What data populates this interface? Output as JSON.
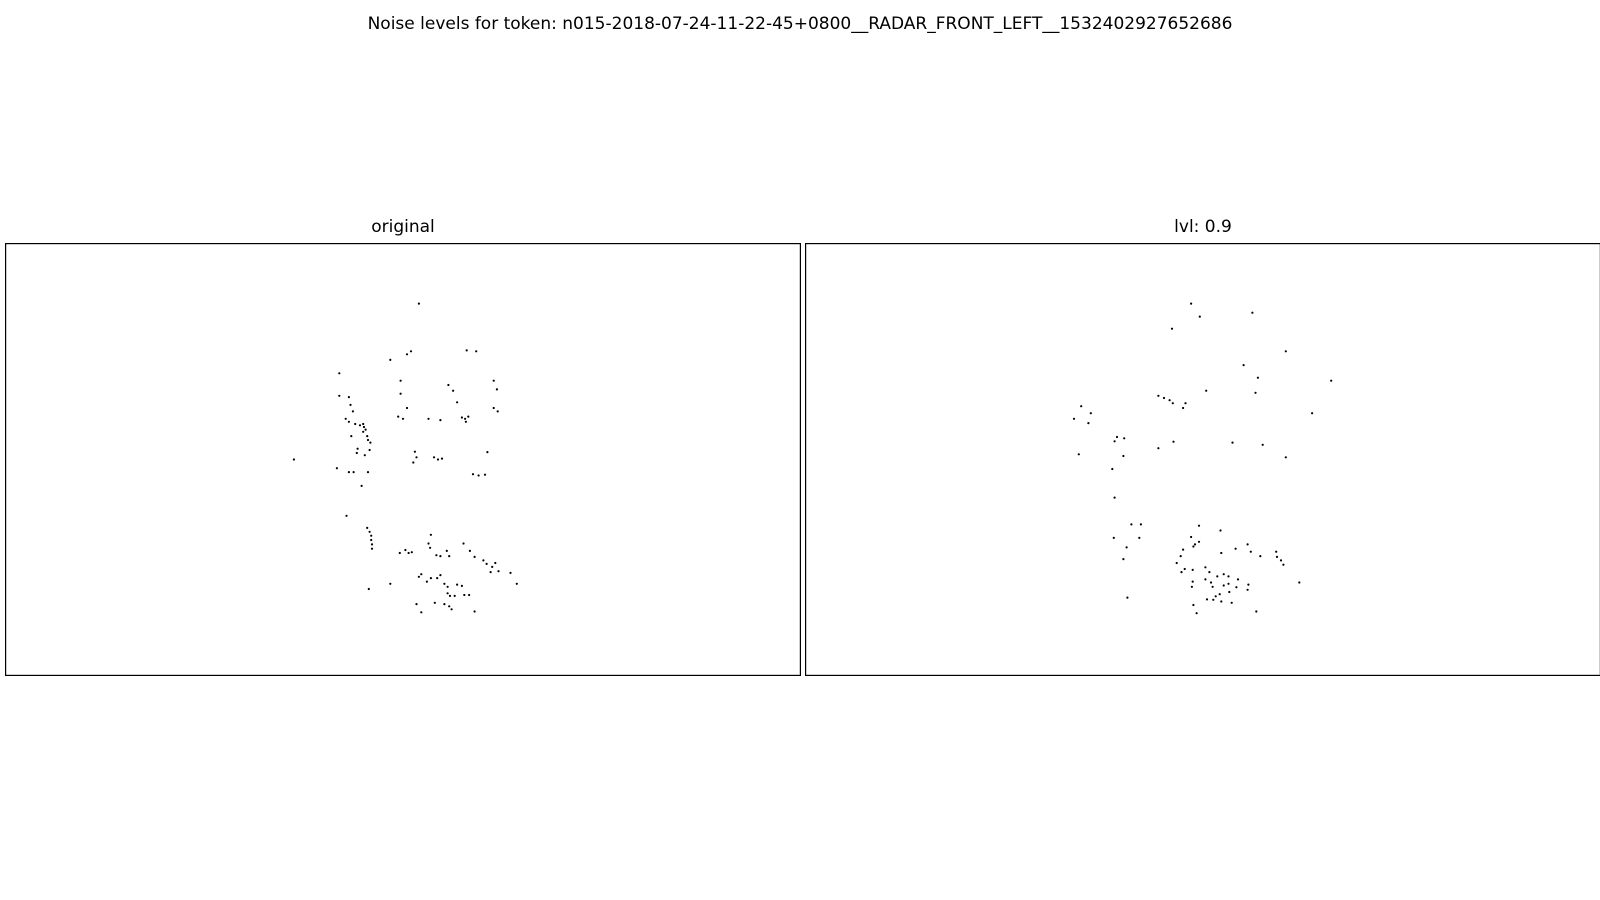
{
  "title": "Noise levels for token: n015-2018-07-24-11-22-45+0800__RADAR_FRONT_LEFT__1532402927652686",
  "chart_data": [
    {
      "type": "scatter",
      "title": "original",
      "axes_visible": false,
      "xlim": [
        0,
        100
      ],
      "ylim": [
        0,
        100
      ],
      "marker_color": "#000000",
      "points": [
        [
          52.0,
          86.0
        ],
        [
          51.0,
          75.0
        ],
        [
          50.5,
          74.3
        ],
        [
          58.0,
          75.2
        ],
        [
          59.2,
          75.0
        ],
        [
          48.4,
          73.0
        ],
        [
          42.0,
          69.9
        ],
        [
          49.7,
          68.2
        ],
        [
          61.4,
          68.2
        ],
        [
          55.7,
          67.2
        ],
        [
          49.7,
          65.2
        ],
        [
          61.8,
          66.2
        ],
        [
          56.3,
          65.9
        ],
        [
          42.0,
          64.7
        ],
        [
          43.2,
          64.4
        ],
        [
          50.5,
          61.9
        ],
        [
          56.8,
          63.2
        ],
        [
          61.4,
          61.9
        ],
        [
          61.9,
          61.1
        ],
        [
          43.4,
          62.6
        ],
        [
          43.7,
          61.1
        ],
        [
          49.4,
          59.9
        ],
        [
          50.0,
          59.4
        ],
        [
          53.2,
          59.4
        ],
        [
          54.7,
          59.1
        ],
        [
          57.4,
          59.7
        ],
        [
          57.9,
          58.7
        ],
        [
          58.2,
          59.9
        ],
        [
          57.8,
          59.4
        ],
        [
          42.8,
          59.4
        ],
        [
          43.2,
          58.7
        ],
        [
          44.0,
          58.2
        ],
        [
          44.6,
          57.9
        ],
        [
          45.0,
          58.2
        ],
        [
          45.1,
          57.5
        ],
        [
          45.3,
          56.9
        ],
        [
          45.0,
          56.4
        ],
        [
          43.5,
          55.4
        ],
        [
          45.5,
          55.4
        ],
        [
          45.6,
          54.5
        ],
        [
          45.9,
          53.9
        ],
        [
          44.2,
          51.5
        ],
        [
          45.2,
          51.0
        ],
        [
          45.8,
          52.2
        ],
        [
          44.3,
          52.5
        ],
        [
          51.5,
          51.8
        ],
        [
          51.7,
          50.5
        ],
        [
          51.3,
          49.3
        ],
        [
          53.9,
          50.5
        ],
        [
          54.4,
          50.0
        ],
        [
          54.9,
          50.2
        ],
        [
          36.3,
          50.0
        ],
        [
          41.7,
          48.0
        ],
        [
          43.2,
          47.1
        ],
        [
          43.8,
          47.1
        ],
        [
          45.6,
          47.1
        ],
        [
          58.8,
          46.6
        ],
        [
          59.5,
          46.3
        ],
        [
          60.3,
          46.5
        ],
        [
          60.6,
          51.7
        ],
        [
          44.8,
          43.9
        ],
        [
          42.9,
          37.0
        ],
        [
          45.5,
          34.2
        ],
        [
          45.8,
          33.3
        ],
        [
          46.0,
          32.4
        ],
        [
          46.0,
          31.4
        ],
        [
          46.1,
          30.4
        ],
        [
          46.1,
          29.4
        ],
        [
          53.5,
          32.6
        ],
        [
          53.2,
          30.6
        ],
        [
          53.4,
          29.6
        ],
        [
          57.6,
          30.6
        ],
        [
          58.4,
          28.9
        ],
        [
          49.6,
          28.4
        ],
        [
          50.3,
          29.1
        ],
        [
          50.7,
          28.4
        ],
        [
          51.1,
          28.6
        ],
        [
          54.2,
          27.9
        ],
        [
          54.7,
          27.7
        ],
        [
          55.5,
          28.9
        ],
        [
          55.8,
          27.7
        ],
        [
          59.0,
          27.5
        ],
        [
          60.1,
          26.7
        ],
        [
          60.5,
          25.9
        ],
        [
          61.6,
          26.1
        ],
        [
          61.2,
          25.2
        ],
        [
          61.0,
          24.0
        ],
        [
          62.0,
          24.2
        ],
        [
          63.5,
          23.8
        ],
        [
          64.3,
          21.3
        ],
        [
          52.3,
          23.5
        ],
        [
          52.0,
          22.9
        ],
        [
          53.5,
          22.6
        ],
        [
          54.3,
          22.6
        ],
        [
          54.7,
          23.3
        ],
        [
          53.0,
          21.8
        ],
        [
          55.2,
          21.3
        ],
        [
          55.6,
          20.6
        ],
        [
          56.8,
          21.1
        ],
        [
          57.4,
          20.8
        ],
        [
          55.6,
          19.1
        ],
        [
          55.9,
          18.5
        ],
        [
          56.5,
          18.5
        ],
        [
          57.7,
          18.7
        ],
        [
          58.3,
          18.7
        ],
        [
          48.4,
          21.3
        ],
        [
          45.7,
          20.1
        ],
        [
          51.7,
          16.6
        ],
        [
          52.3,
          14.7
        ],
        [
          54.0,
          16.9
        ],
        [
          55.2,
          16.6
        ],
        [
          55.8,
          16.1
        ],
        [
          56.1,
          15.4
        ],
        [
          59.0,
          14.9
        ]
      ]
    },
    {
      "type": "scatter",
      "title": "lvl: 0.9",
      "axes_visible": false,
      "xlim": [
        0,
        100
      ],
      "ylim": [
        0,
        100
      ],
      "marker_color": "#000000",
      "points": [
        [
          48.5,
          86.0
        ],
        [
          49.6,
          83.0
        ],
        [
          56.2,
          83.9
        ],
        [
          46.1,
          80.2
        ],
        [
          60.4,
          75.0
        ],
        [
          55.1,
          71.8
        ],
        [
          56.9,
          68.9
        ],
        [
          66.1,
          68.2
        ],
        [
          50.4,
          65.9
        ],
        [
          56.6,
          65.4
        ],
        [
          44.4,
          64.7
        ],
        [
          45.1,
          64.2
        ],
        [
          45.8,
          63.7
        ],
        [
          46.2,
          63.0
        ],
        [
          47.8,
          63.0
        ],
        [
          47.5,
          61.9
        ],
        [
          34.7,
          62.3
        ],
        [
          35.9,
          60.7
        ],
        [
          33.8,
          59.4
        ],
        [
          35.6,
          58.4
        ],
        [
          63.7,
          60.7
        ],
        [
          39.2,
          55.2
        ],
        [
          40.1,
          54.9
        ],
        [
          38.9,
          54.2
        ],
        [
          44.4,
          52.6
        ],
        [
          46.3,
          54.1
        ],
        [
          53.7,
          53.9
        ],
        [
          57.5,
          53.4
        ],
        [
          60.4,
          50.5
        ],
        [
          40.0,
          50.8
        ],
        [
          34.4,
          51.2
        ],
        [
          38.6,
          47.8
        ],
        [
          38.9,
          41.2
        ],
        [
          41.0,
          35.0
        ],
        [
          42.2,
          35.0
        ],
        [
          38.8,
          31.9
        ],
        [
          42.0,
          31.9
        ],
        [
          40.4,
          29.7
        ],
        [
          40.0,
          27.0
        ],
        [
          49.5,
          34.7
        ],
        [
          48.5,
          32.1
        ],
        [
          49.5,
          31.0
        ],
        [
          49.0,
          30.4
        ],
        [
          52.2,
          33.6
        ],
        [
          48.8,
          29.9
        ],
        [
          47.5,
          29.2
        ],
        [
          47.2,
          27.7
        ],
        [
          52.3,
          28.4
        ],
        [
          54.1,
          29.4
        ],
        [
          55.6,
          30.4
        ],
        [
          56.0,
          28.7
        ],
        [
          57.2,
          27.7
        ],
        [
          59.2,
          28.7
        ],
        [
          59.3,
          27.5
        ],
        [
          59.8,
          26.7
        ],
        [
          60.1,
          25.7
        ],
        [
          46.7,
          26.1
        ],
        [
          48.7,
          24.5
        ],
        [
          47.7,
          24.7
        ],
        [
          47.3,
          24.0
        ],
        [
          50.3,
          25.1
        ],
        [
          50.8,
          24.0
        ],
        [
          51.8,
          23.0
        ],
        [
          52.6,
          23.5
        ],
        [
          53.2,
          23.0
        ],
        [
          50.3,
          22.3
        ],
        [
          51.0,
          21.6
        ],
        [
          51.2,
          20.6
        ],
        [
          52.6,
          20.9
        ],
        [
          53.2,
          21.3
        ],
        [
          48.7,
          21.8
        ],
        [
          54.4,
          22.3
        ],
        [
          54.2,
          20.5
        ],
        [
          55.7,
          21.1
        ],
        [
          55.6,
          19.9
        ],
        [
          53.3,
          19.4
        ],
        [
          52.1,
          18.9
        ],
        [
          51.6,
          18.4
        ],
        [
          51.3,
          17.6
        ],
        [
          50.5,
          17.7
        ],
        [
          52.3,
          17.2
        ],
        [
          53.6,
          16.9
        ],
        [
          40.5,
          18.1
        ],
        [
          48.6,
          20.6
        ],
        [
          48.8,
          16.4
        ],
        [
          49.2,
          14.5
        ],
        [
          56.7,
          14.9
        ],
        [
          62.1,
          21.6
        ]
      ]
    }
  ]
}
